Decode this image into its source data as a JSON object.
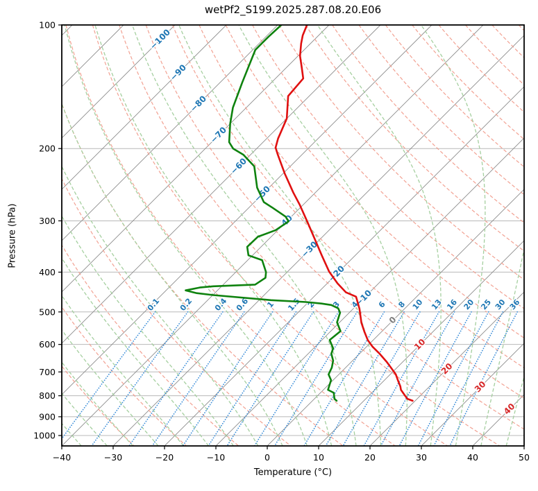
{
  "chart_data": {
    "type": "line",
    "variant": "skew-t-log-p",
    "title": "wetPf2_S199.2025.287.08.20.E06",
    "xlabel": "Temperature (°C)",
    "ylabel": "Pressure (hPa)",
    "xlim": [
      -40,
      50
    ],
    "plim": [
      100,
      1060
    ],
    "skew_deg": 45,
    "x_ticks": [
      -40,
      -30,
      -20,
      -10,
      0,
      10,
      20,
      30,
      40,
      50
    ],
    "p_ticks": [
      100,
      200,
      300,
      400,
      500,
      600,
      700,
      800,
      900,
      1000
    ],
    "isotherms": {
      "start": -120,
      "end": 50,
      "step": 10
    },
    "isotherm_labels": [
      -100,
      -90,
      -80,
      -70,
      -60,
      -50,
      -40,
      -30,
      -20,
      -10,
      0,
      10,
      20,
      30,
      40
    ],
    "dry_adiabats_theta_c": {
      "start": -30,
      "end": 190,
      "step": 10
    },
    "moist_adiabats_t0_c": {
      "start": -40,
      "end": 45,
      "step": 5
    },
    "mixing_ratios_g_kg": [
      0.1,
      0.2,
      0.4,
      0.6,
      1,
      1.5,
      2,
      3,
      4,
      6,
      8,
      10,
      13,
      16,
      20,
      25,
      30,
      36
    ],
    "series": [
      {
        "name": "temperature",
        "color": "#e01010",
        "points_p_t": [
          [
            100,
            -74.3
          ],
          [
            106,
            -73.1
          ],
          [
            111,
            -71.8
          ],
          [
            119,
            -69.6
          ],
          [
            127,
            -67.0
          ],
          [
            135,
            -64.6
          ],
          [
            149,
            -64.1
          ],
          [
            169,
            -60.0
          ],
          [
            189,
            -57.8
          ],
          [
            199,
            -56.5
          ],
          [
            207,
            -54.7
          ],
          [
            230,
            -49.7
          ],
          [
            256,
            -44.3
          ],
          [
            274,
            -40.7
          ],
          [
            302,
            -35.8
          ],
          [
            330,
            -31.4
          ],
          [
            365,
            -26.4
          ],
          [
            399,
            -21.9
          ],
          [
            426,
            -18.0
          ],
          [
            448,
            -14.6
          ],
          [
            459,
            -11.8
          ],
          [
            491,
            -8.8
          ],
          [
            531,
            -5.7
          ],
          [
            558,
            -3.4
          ],
          [
            585,
            -1.1
          ],
          [
            608,
            1.2
          ],
          [
            632,
            3.9
          ],
          [
            662,
            6.9
          ],
          [
            683,
            8.8
          ],
          [
            710,
            11.1
          ],
          [
            733,
            12.6
          ],
          [
            759,
            14.3
          ],
          [
            774,
            15.1
          ],
          [
            798,
            16.9
          ],
          [
            814,
            18.1
          ],
          [
            823,
            19.5
          ]
        ]
      },
      {
        "name": "dewpoint",
        "color": "#0e820e",
        "points_p_t": [
          [
            100,
            -79.3
          ],
          [
            107,
            -79.5
          ],
          [
            115,
            -79.5
          ],
          [
            138,
            -75.7
          ],
          [
            159,
            -72.6
          ],
          [
            174,
            -70.0
          ],
          [
            193,
            -66.6
          ],
          [
            200,
            -64.6
          ],
          [
            207,
            -61.4
          ],
          [
            221,
            -57.0
          ],
          [
            249,
            -52.3
          ],
          [
            260,
            -50.1
          ],
          [
            270,
            -48.2
          ],
          [
            279,
            -45.3
          ],
          [
            293,
            -41.1
          ],
          [
            301,
            -39.6
          ],
          [
            316,
            -40.4
          ],
          [
            328,
            -42.6
          ],
          [
            347,
            -42.7
          ],
          [
            364,
            -40.8
          ],
          [
            374,
            -37.2
          ],
          [
            400,
            -34.1
          ],
          [
            413,
            -33.1
          ],
          [
            429,
            -33.8
          ],
          [
            433,
            -41.6
          ],
          [
            436,
            -44.0
          ],
          [
            443,
            -46.2
          ],
          [
            450,
            -43.5
          ],
          [
            455,
            -39.9
          ],
          [
            468,
            -27.7
          ],
          [
            473,
            -20.5
          ],
          [
            477,
            -17.2
          ],
          [
            481,
            -15.0
          ],
          [
            490,
            -13.0
          ],
          [
            502,
            -11.8
          ],
          [
            530,
            -10.5
          ],
          [
            557,
            -8.1
          ],
          [
            585,
            -8.5
          ],
          [
            613,
            -6.2
          ],
          [
            632,
            -5.5
          ],
          [
            657,
            -3.8
          ],
          [
            683,
            -2.7
          ],
          [
            710,
            -2.0
          ],
          [
            733,
            -0.4
          ],
          [
            774,
            0.9
          ],
          [
            787,
            2.6
          ],
          [
            814,
            3.9
          ],
          [
            823,
            4.7
          ]
        ]
      }
    ],
    "colors": {
      "isotherm": "#8c8c8c",
      "pressure_grid": "#b8b8b8",
      "dry_adiabat": "#f2a192",
      "moist_adiabat": "#a5cf9f",
      "mixing_line": "#3a8dd8",
      "label_negative": "#1f77b4",
      "label_zero": "#7f7f7f",
      "label_positive": "#d62728",
      "spine": "#000000"
    }
  }
}
